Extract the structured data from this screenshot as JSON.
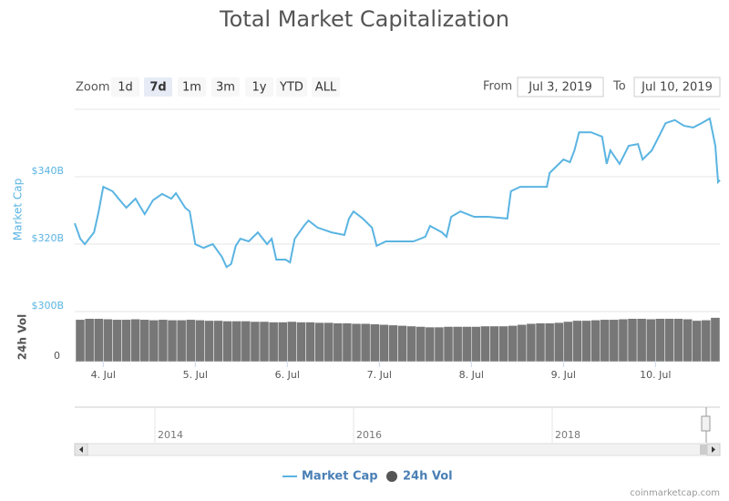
{
  "chart_data": [
    {
      "type": "line",
      "title": "Total Market Capitalization",
      "y_label": "Market Cap",
      "x": [
        3.69,
        3.75,
        3.8,
        3.9,
        3.95,
        4.0,
        4.1,
        4.2,
        4.25,
        4.35,
        4.45,
        4.54,
        4.64,
        4.74,
        4.79,
        4.89,
        4.94,
        5.0,
        5.09,
        5.19,
        5.29,
        5.34,
        5.39,
        5.44,
        5.49,
        5.58,
        5.68,
        5.78,
        5.83,
        5.88,
        5.98,
        6.03,
        6.08,
        6.18,
        6.23,
        6.33,
        6.48,
        6.62,
        6.67,
        6.72,
        6.82,
        6.92,
        6.97,
        7.07,
        7.22,
        7.37,
        7.5,
        7.55,
        7.68,
        7.73,
        7.78,
        7.88,
        8.03,
        8.18,
        8.39,
        8.43,
        8.53,
        8.67,
        8.82,
        8.85,
        9.0,
        9.07,
        9.12,
        9.17,
        9.3,
        9.42,
        9.47,
        9.51,
        9.61,
        9.71,
        9.81,
        9.86,
        9.96,
        10.06,
        10.11,
        10.21,
        10.31,
        10.41,
        10.5,
        10.59,
        10.65,
        10.68,
        10.7
      ],
      "series": [
        {
          "name": "Market Cap",
          "color": "#5ab4e2",
          "values": [
            326.2,
            321.6,
            320.0,
            323.5,
            329.7,
            337.0,
            335.7,
            332.4,
            330.8,
            333.5,
            328.9,
            333.0,
            334.9,
            333.5,
            335.1,
            330.8,
            329.7,
            320.0,
            318.9,
            320.0,
            316.2,
            313.2,
            314.1,
            319.5,
            321.6,
            320.8,
            323.5,
            320.0,
            321.6,
            315.4,
            315.4,
            314.6,
            321.6,
            325.4,
            327.0,
            324.9,
            323.5,
            322.7,
            327.6,
            329.7,
            327.6,
            324.9,
            319.5,
            320.8,
            320.8,
            320.8,
            322.2,
            325.4,
            323.5,
            322.2,
            328.1,
            329.7,
            328.1,
            328.1,
            327.6,
            335.7,
            337.0,
            337.0,
            337.0,
            341.1,
            345.1,
            344.3,
            347.8,
            353.2,
            353.2,
            351.9,
            343.8,
            347.8,
            343.8,
            349.2,
            349.7,
            345.1,
            347.8,
            353.2,
            355.9,
            356.8,
            355.1,
            354.6,
            355.9,
            357.3,
            349.2,
            338.4,
            339.0
          ]
        }
      ],
      "xlim": [
        3.69,
        10.7
      ],
      "xticks": [
        {
          "value": 4,
          "label": "4. Jul"
        },
        {
          "value": 5,
          "label": "5. Jul"
        },
        {
          "value": 6,
          "label": "6. Jul"
        },
        {
          "value": 7,
          "label": "7. Jul"
        },
        {
          "value": 8,
          "label": "8. Jul"
        },
        {
          "value": 9,
          "label": "9. Jul"
        },
        {
          "value": 10,
          "label": "10. Jul"
        }
      ],
      "ylim": [
        300,
        360
      ],
      "yticks": [
        {
          "value": 300,
          "label": "$300B"
        },
        {
          "value": 320,
          "label": "$320B"
        },
        {
          "value": 340,
          "label": "$340B"
        }
      ],
      "grid": true
    },
    {
      "type": "bar",
      "y_label": "24h Vol",
      "x": [
        3.7,
        3.8,
        3.9,
        4.0,
        4.1,
        4.2,
        4.3,
        4.4,
        4.5,
        4.6,
        4.7,
        4.8,
        4.9,
        5.0,
        5.1,
        5.2,
        5.3,
        5.4,
        5.5,
        5.6,
        5.7,
        5.8,
        5.9,
        6.0,
        6.1,
        6.2,
        6.3,
        6.4,
        6.5,
        6.6,
        6.7,
        6.8,
        6.9,
        7.0,
        7.1,
        7.2,
        7.3,
        7.4,
        7.5,
        7.6,
        7.7,
        7.8,
        7.9,
        8.0,
        8.1,
        8.2,
        8.3,
        8.4,
        8.5,
        8.6,
        8.7,
        8.8,
        8.9,
        9.0,
        9.1,
        9.2,
        9.3,
        9.4,
        9.5,
        9.6,
        9.7,
        9.8,
        9.9,
        10.0,
        10.1,
        10.2,
        10.3,
        10.4,
        10.5,
        10.6
      ],
      "series": [
        {
          "name": "24h Vol",
          "color": "#777777",
          "values": [
            84,
            86,
            86,
            85,
            84,
            84,
            85,
            84,
            83,
            84,
            83,
            83,
            84,
            83,
            82,
            82,
            81,
            81,
            81,
            80,
            80,
            79,
            79,
            80,
            79,
            79,
            78,
            78,
            77,
            77,
            76,
            76,
            75,
            74,
            73,
            72,
            71,
            70,
            69,
            69,
            70,
            70,
            70,
            70,
            71,
            71,
            71,
            72,
            74,
            76,
            77,
            77,
            78,
            80,
            82,
            82,
            83,
            84,
            84,
            85,
            86,
            86,
            85,
            86,
            86,
            86,
            85,
            82,
            83,
            88
          ]
        }
      ],
      "xlim": [
        3.69,
        10.7
      ],
      "ylim": [
        0,
        100
      ],
      "yticks": [
        0
      ]
    }
  ],
  "range_selector": {
    "label": "Zoom",
    "buttons": [
      "1d",
      "7d",
      "1m",
      "3m",
      "1y",
      "YTD",
      "ALL"
    ],
    "selected": 1
  },
  "date_range": {
    "from_label": "From",
    "from": "Jul 3, 2019",
    "to_label": "To",
    "to": "Jul 10, 2019"
  },
  "navigator": {
    "labels": [
      "2014",
      "2016",
      "2018"
    ]
  },
  "credit": "coinmarketcap.com"
}
